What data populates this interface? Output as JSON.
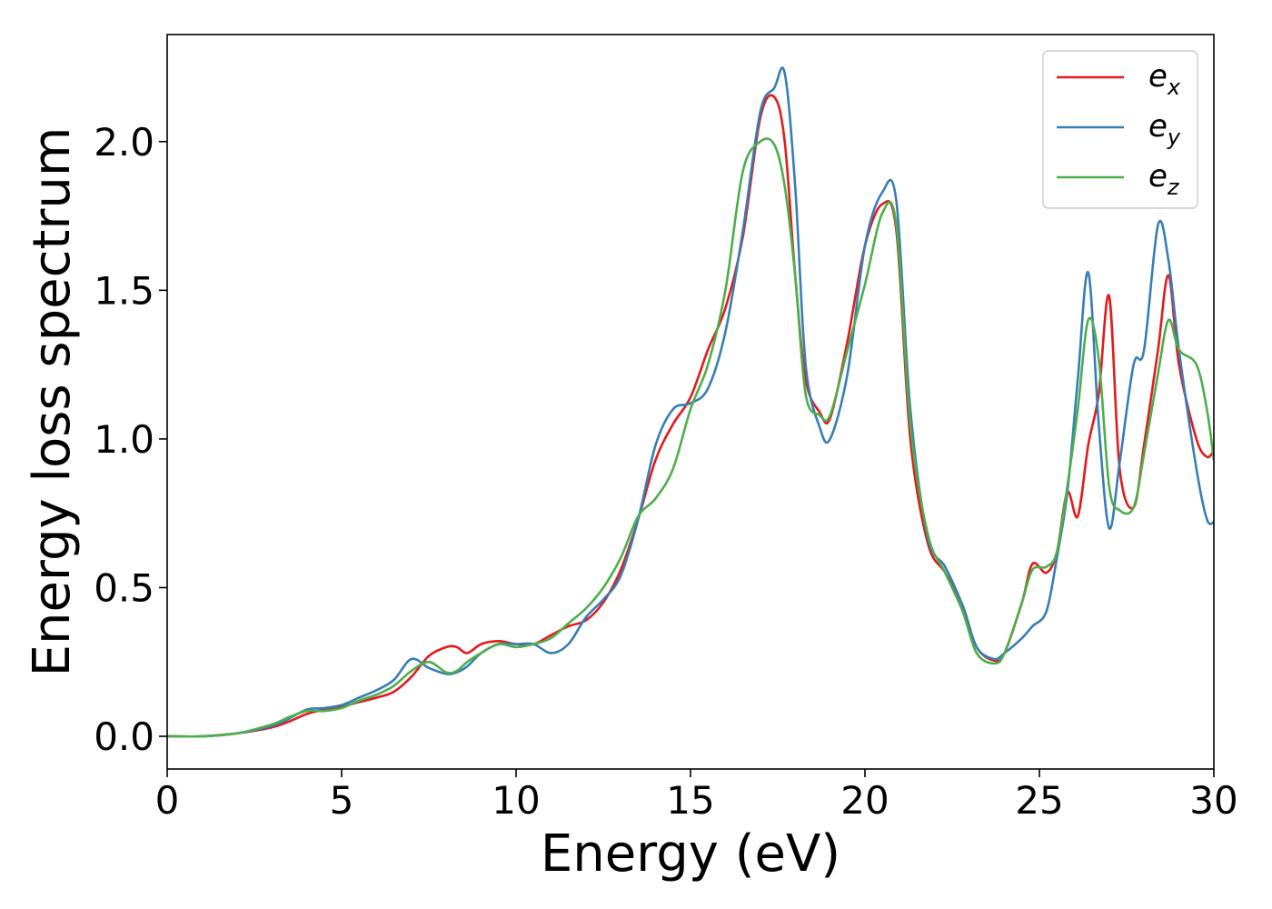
{
  "chart_data": {
    "type": "line",
    "title": "",
    "xlabel": "Energy (eV)",
    "ylabel": "Energy loss spectrum",
    "xlim": [
      0,
      30
    ],
    "ylim": [
      -0.11,
      2.36
    ],
    "x_ticks": [
      0,
      5,
      10,
      15,
      20,
      25,
      30
    ],
    "y_ticks": [
      0.0,
      0.5,
      1.0,
      1.5,
      2.0
    ],
    "x_tick_labels": [
      "0",
      "5",
      "10",
      "15",
      "20",
      "25",
      "30"
    ],
    "y_tick_labels": [
      "0.0",
      "0.5",
      "1.0",
      "1.5",
      "2.0"
    ],
    "grid": false,
    "legend_position": "top-right",
    "series": [
      {
        "name": "e_x",
        "label_base": "e",
        "label_sub": "x",
        "color": "#e41a1c",
        "x": [
          0,
          1,
          2,
          3,
          3.5,
          4,
          4.5,
          5,
          5.5,
          6,
          6.5,
          7,
          7.5,
          8,
          8.3,
          8.6,
          9,
          9.5,
          10,
          10.5,
          11,
          11.5,
          12,
          12.5,
          13,
          13.5,
          14,
          14.5,
          15,
          15.5,
          16,
          16.5,
          17,
          17.4,
          17.7,
          18,
          18.3,
          18.7,
          19,
          19.5,
          20,
          20.5,
          20.9,
          21.3,
          21.8,
          22.3,
          22.8,
          23.2,
          23.7,
          24,
          24.5,
          24.8,
          25.2,
          25.5,
          25.8,
          26.1,
          26.4,
          26.7,
          27,
          27.3,
          27.7,
          28,
          28.4,
          28.7,
          29,
          29.5,
          29.8,
          30
        ],
        "y": [
          0,
          0,
          0.01,
          0.03,
          0.05,
          0.075,
          0.09,
          0.1,
          0.115,
          0.13,
          0.15,
          0.2,
          0.27,
          0.3,
          0.3,
          0.28,
          0.31,
          0.32,
          0.31,
          0.31,
          0.34,
          0.37,
          0.39,
          0.45,
          0.56,
          0.73,
          0.93,
          1.05,
          1.14,
          1.3,
          1.44,
          1.68,
          2.08,
          2.15,
          2.0,
          1.55,
          1.2,
          1.09,
          1.07,
          1.33,
          1.65,
          1.79,
          1.7,
          1.0,
          0.65,
          0.55,
          0.44,
          0.3,
          0.255,
          0.28,
          0.45,
          0.58,
          0.55,
          0.62,
          0.82,
          0.74,
          0.98,
          1.15,
          1.48,
          0.9,
          0.77,
          0.98,
          1.3,
          1.55,
          1.25,
          1.0,
          0.94,
          0.96
        ]
      },
      {
        "name": "e_y",
        "label_base": "e",
        "label_sub": "y",
        "color": "#377eb8",
        "x": [
          0,
          1,
          2,
          3,
          3.5,
          4,
          4.5,
          5,
          5.5,
          6,
          6.5,
          7,
          7.5,
          8,
          8.3,
          8.6,
          9,
          9.5,
          10,
          10.5,
          11,
          11.5,
          12,
          12.5,
          13,
          13.5,
          14,
          14.5,
          15,
          15.5,
          16,
          16.5,
          17,
          17.4,
          17.7,
          18,
          18.3,
          18.7,
          19,
          19.5,
          20,
          20.5,
          20.9,
          21.3,
          21.8,
          22.3,
          22.8,
          23.2,
          23.7,
          24,
          24.5,
          24.8,
          25.2,
          25.5,
          25.8,
          26.1,
          26.4,
          26.7,
          27,
          27.3,
          27.7,
          28,
          28.4,
          28.7,
          29,
          29.5,
          29.8,
          30
        ],
        "y": [
          0,
          0,
          0.01,
          0.035,
          0.06,
          0.09,
          0.095,
          0.105,
          0.13,
          0.155,
          0.19,
          0.26,
          0.23,
          0.21,
          0.215,
          0.235,
          0.28,
          0.31,
          0.31,
          0.31,
          0.28,
          0.31,
          0.4,
          0.46,
          0.54,
          0.73,
          0.98,
          1.1,
          1.12,
          1.17,
          1.36,
          1.7,
          2.1,
          2.18,
          2.23,
          1.85,
          1.25,
          1.04,
          1.0,
          1.22,
          1.65,
          1.83,
          1.8,
          1.1,
          0.67,
          0.57,
          0.44,
          0.3,
          0.26,
          0.28,
          0.33,
          0.37,
          0.42,
          0.6,
          0.82,
          1.2,
          1.56,
          1.05,
          0.7,
          0.92,
          1.25,
          1.3,
          1.72,
          1.6,
          1.3,
          0.9,
          0.73,
          0.72
        ]
      },
      {
        "name": "e_z",
        "label_base": "e",
        "label_sub": "z",
        "color": "#4daf4a",
        "x": [
          0,
          1,
          2,
          3,
          3.5,
          4,
          4.5,
          5,
          5.5,
          6,
          6.5,
          7,
          7.5,
          8,
          8.3,
          8.6,
          9,
          9.5,
          10,
          10.5,
          11,
          11.5,
          12,
          12.5,
          13,
          13.5,
          14,
          14.5,
          15,
          15.5,
          16,
          16.5,
          17,
          17.4,
          17.7,
          18,
          18.3,
          18.7,
          19,
          19.5,
          20,
          20.5,
          20.9,
          21.3,
          21.8,
          22.3,
          22.8,
          23.2,
          23.7,
          24,
          24.5,
          24.8,
          25.2,
          25.5,
          25.8,
          26.1,
          26.4,
          26.7,
          27,
          27.3,
          27.7,
          28,
          28.4,
          28.7,
          29,
          29.5,
          29.8,
          30
        ],
        "y": [
          0,
          0,
          0.01,
          0.04,
          0.065,
          0.085,
          0.085,
          0.095,
          0.12,
          0.14,
          0.17,
          0.22,
          0.25,
          0.215,
          0.22,
          0.25,
          0.28,
          0.31,
          0.3,
          0.31,
          0.33,
          0.38,
          0.43,
          0.5,
          0.6,
          0.74,
          0.8,
          0.9,
          1.1,
          1.25,
          1.5,
          1.9,
          2.0,
          1.99,
          1.85,
          1.55,
          1.15,
          1.08,
          1.08,
          1.3,
          1.52,
          1.76,
          1.72,
          1.05,
          0.68,
          0.55,
          0.42,
          0.28,
          0.245,
          0.28,
          0.45,
          0.56,
          0.57,
          0.62,
          0.84,
          1.1,
          1.4,
          1.27,
          0.84,
          0.76,
          0.77,
          0.95,
          1.22,
          1.4,
          1.3,
          1.25,
          1.1,
          0.93
        ]
      }
    ]
  }
}
